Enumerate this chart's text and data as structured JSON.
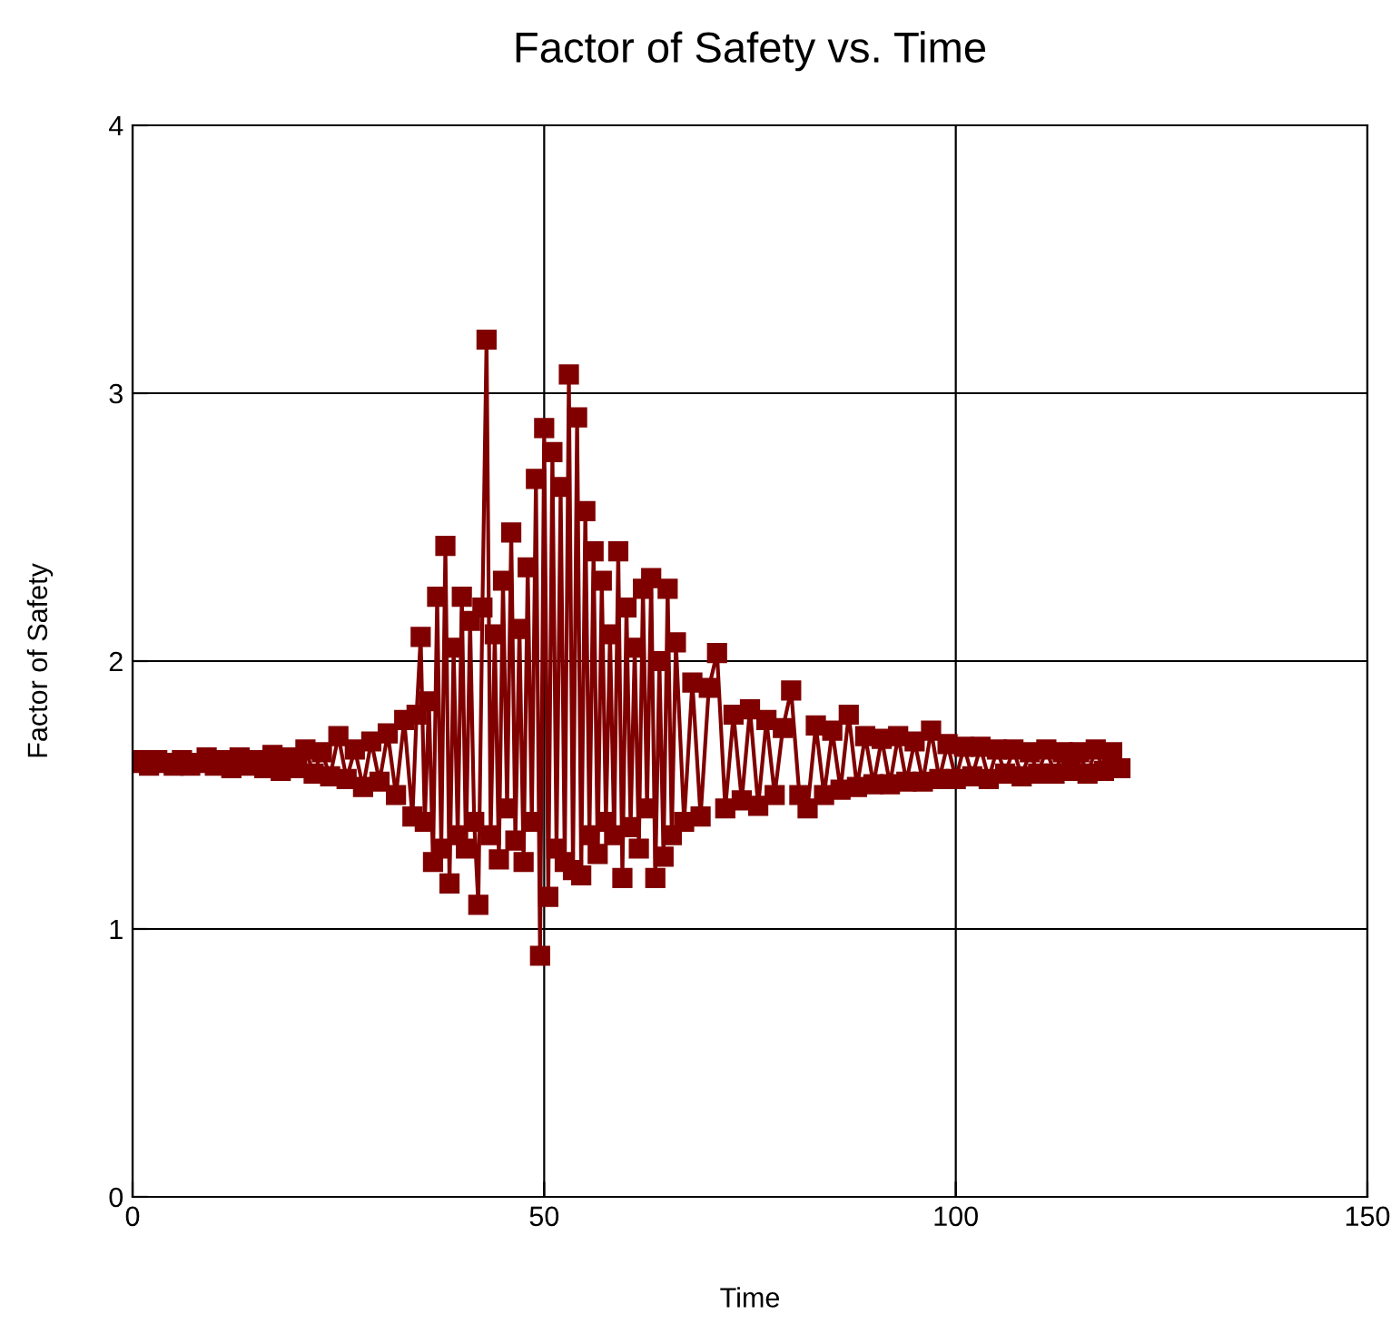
{
  "chart_data": {
    "type": "line",
    "title": "Factor of Safety vs. Time",
    "xlabel": "Time",
    "ylabel": "Factor of Safety",
    "xlim": [
      0,
      150
    ],
    "ylim": [
      0,
      4
    ],
    "xticks": [
      0,
      50,
      100,
      150
    ],
    "yticks": [
      0,
      1,
      2,
      3,
      4
    ],
    "grid": true,
    "marker": "square",
    "line_style": "solid",
    "series": [
      {
        "color": "#800000",
        "x": [
          0,
          1,
          2,
          3,
          4,
          5,
          6,
          7,
          8,
          9,
          10,
          11,
          12,
          13,
          14,
          15,
          16,
          17,
          18,
          19,
          20,
          21,
          22,
          23,
          24,
          25,
          26,
          27,
          28,
          29,
          30,
          31,
          32,
          33,
          34.0,
          34.5,
          35.0,
          35.5,
          36.0,
          36.5,
          37.0,
          37.5,
          38.0,
          38.5,
          39.0,
          39.5,
          40.0,
          40.5,
          41.0,
          41.5,
          42.0,
          42.5,
          43.0,
          43.5,
          44.0,
          44.5,
          45.0,
          45.5,
          46.0,
          46.5,
          47.0,
          47.5,
          48.0,
          48.5,
          49.0,
          49.5,
          50.0,
          50.5,
          51.0,
          51.5,
          52.0,
          52.5,
          53.0,
          53.5,
          54.0,
          54.5,
          55.0,
          55.5,
          56.0,
          56.5,
          57.0,
          57.5,
          58.0,
          58.5,
          59.0,
          59.5,
          60.0,
          60.5,
          61.0,
          61.5,
          62.0,
          62.5,
          63.0,
          63.5,
          64.0,
          64.5,
          65.0,
          65.5,
          66.0,
          67,
          68,
          69,
          70,
          71,
          72,
          73,
          74,
          75,
          76,
          77,
          78,
          79,
          80,
          81,
          82,
          83,
          84,
          85,
          86,
          87,
          88,
          89,
          90,
          91,
          92,
          93,
          94,
          95,
          96,
          97,
          98,
          99,
          100,
          101,
          102,
          103,
          104,
          105,
          106,
          107,
          108,
          109,
          110,
          111,
          112,
          113,
          114,
          115,
          116,
          117,
          118,
          119,
          120
        ],
        "values": [
          1.62,
          1.63,
          1.61,
          1.63,
          1.62,
          1.61,
          1.63,
          1.61,
          1.62,
          1.64,
          1.61,
          1.63,
          1.6,
          1.64,
          1.61,
          1.63,
          1.6,
          1.65,
          1.59,
          1.64,
          1.6,
          1.67,
          1.58,
          1.66,
          1.57,
          1.72,
          1.56,
          1.67,
          1.53,
          1.7,
          1.55,
          1.73,
          1.5,
          1.78,
          1.42,
          1.8,
          2.09,
          1.4,
          1.85,
          1.25,
          2.24,
          1.3,
          2.43,
          1.17,
          2.05,
          1.35,
          2.24,
          1.3,
          2.15,
          1.4,
          1.09,
          2.2,
          3.2,
          1.35,
          2.1,
          1.26,
          2.3,
          1.45,
          2.48,
          1.33,
          2.12,
          1.25,
          2.35,
          1.4,
          2.68,
          0.9,
          2.87,
          1.12,
          2.78,
          1.3,
          2.65,
          1.25,
          3.07,
          1.22,
          2.91,
          1.2,
          2.56,
          1.35,
          2.41,
          1.28,
          2.3,
          1.4,
          2.1,
          1.35,
          2.41,
          1.19,
          2.2,
          1.38,
          2.05,
          1.3,
          2.27,
          1.45,
          2.31,
          1.19,
          2.0,
          1.27,
          2.27,
          1.35,
          2.07,
          1.4,
          1.92,
          1.42,
          1.9,
          2.03,
          1.45,
          1.8,
          1.48,
          1.82,
          1.46,
          1.78,
          1.5,
          1.75,
          1.89,
          1.5,
          1.45,
          1.76,
          1.5,
          1.74,
          1.52,
          1.8,
          1.53,
          1.72,
          1.54,
          1.71,
          1.54,
          1.72,
          1.55,
          1.7,
          1.55,
          1.74,
          1.56,
          1.69,
          1.56,
          1.68,
          1.57,
          1.68,
          1.56,
          1.67,
          1.58,
          1.67,
          1.57,
          1.66,
          1.58,
          1.67,
          1.58,
          1.66,
          1.59,
          1.66,
          1.58,
          1.67,
          1.59,
          1.66,
          1.6
        ]
      }
    ]
  }
}
